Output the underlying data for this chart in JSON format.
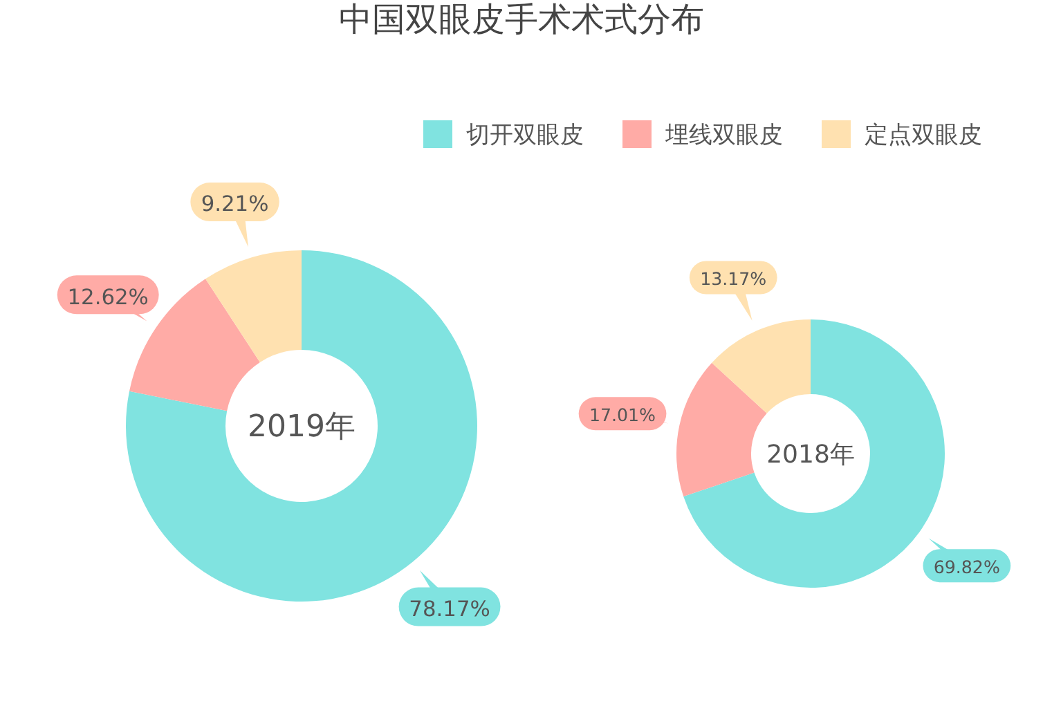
{
  "chart_data": [
    {
      "type": "donut",
      "title": "中国双眼皮手术术式分布",
      "categories": [
        "切开双眼皮",
        "埋线双眼皮",
        "定点双眼皮"
      ],
      "values": [
        78.17,
        12.62,
        9.21
      ],
      "value_labels": [
        "78.17%",
        "12.62%",
        "9.21%"
      ],
      "colors": [
        "#80e3e0",
        "#ffaba6",
        "#ffe1b0"
      ],
      "annotations": [
        "2019年"
      ],
      "legend": "top right"
    },
    {
      "type": "donut",
      "categories": [
        null,
        null,
        null
      ],
      "values": [
        69.82,
        17.01,
        13.17
      ],
      "value_labels": [
        "69.82%",
        "17.01%",
        "13.17%"
      ],
      "colors": [
        "#80e3e0",
        "#ffaba6",
        "#ffe1b0"
      ],
      "annotations": [
        "2018年"
      ]
    }
  ]
}
